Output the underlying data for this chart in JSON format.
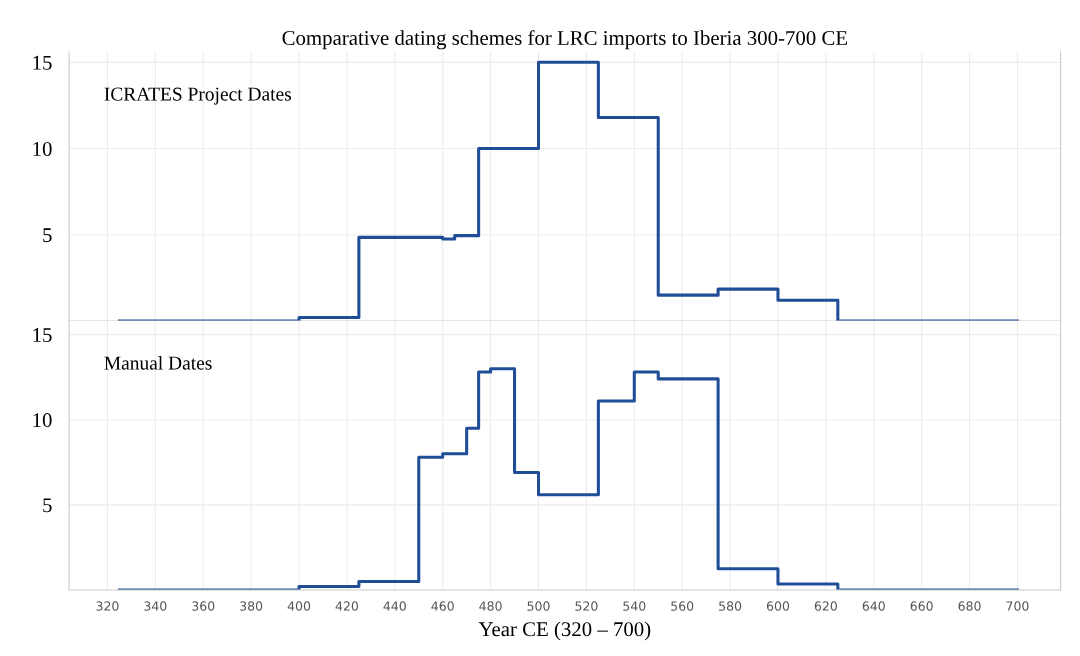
{
  "chart_data": [
    {
      "type": "step",
      "title": "Comparative dating schemes for LRC imports to Iberia 300-700 CE",
      "annotations": [
        "ICRATES Project Dates"
      ],
      "x": [
        325,
        400,
        425,
        460,
        465,
        475,
        500,
        525,
        550,
        575,
        600,
        625,
        700
      ],
      "series": [
        {
          "color": "#1f4e96",
          "values": [
            0,
            0.2,
            4.85,
            4.75,
            4.95,
            10,
            15,
            11.8,
            1.5,
            1.85,
            1.2,
            0,
            0
          ]
        }
      ],
      "xlim": [
        304,
        718
      ],
      "ylim": [
        0,
        15.6
      ],
      "xticks": [
        320,
        340,
        360,
        380,
        400,
        420,
        440,
        460,
        480,
        500,
        520,
        540,
        560,
        580,
        600,
        620,
        640,
        660,
        680,
        700
      ],
      "yticks": [
        5,
        10,
        15
      ],
      "tick_labels": "y",
      "grid": true
    },
    {
      "type": "step",
      "xlabel": "Year CE (320 – 700)",
      "annotations": [
        "Manual Dates"
      ],
      "x": [
        325,
        400,
        425,
        450,
        460,
        470,
        475,
        480,
        490,
        500,
        525,
        540,
        550,
        575,
        600,
        625,
        700
      ],
      "series": [
        {
          "color": "#1f4e96",
          "values": [
            0,
            0.2,
            0.5,
            7.8,
            8.0,
            9.5,
            12.8,
            13.0,
            6.9,
            5.6,
            11.1,
            12.8,
            12.4,
            1.25,
            0.35,
            0,
            0
          ]
        }
      ],
      "xlim": [
        304,
        718
      ],
      "ylim": [
        0,
        15.8
      ],
      "xticks": [
        320,
        340,
        360,
        380,
        400,
        420,
        440,
        460,
        480,
        500,
        520,
        540,
        560,
        580,
        600,
        620,
        640,
        660,
        680,
        700
      ],
      "yticks": [
        5,
        10,
        15
      ],
      "grid": true
    }
  ]
}
